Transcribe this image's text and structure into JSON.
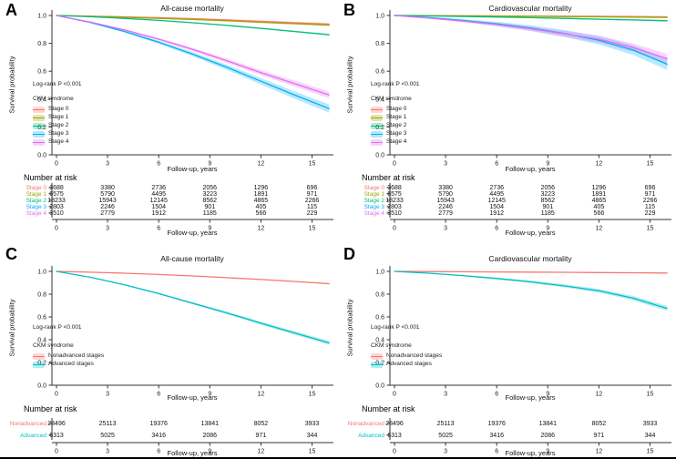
{
  "figure": {
    "background": "#ffffff",
    "bottom_rule_color": "#000000",
    "axis_color": "#333333",
    "xlabel": "Follow-up, years",
    "ylabel": "Survival probability",
    "risk_header": "Number at risk",
    "x_ticks": [
      0,
      3,
      6,
      9,
      12,
      15
    ],
    "y_ticks": [
      "1.0",
      "0.8",
      "0.6",
      "0.4",
      "0.2",
      "0.0"
    ]
  },
  "chart_data": [
    {
      "type": "line",
      "panel_label": "A",
      "title": "All-cause mortality",
      "xlabel": "Follow-up, years",
      "ylabel": "Survival probability",
      "annotation": "Log-rank P <0.001",
      "legend_title": "CKM syndrome",
      "xlim": [
        0,
        16
      ],
      "ylim": [
        0,
        1
      ],
      "x_ticks": [
        0,
        3,
        6,
        9,
        12,
        15
      ],
      "y_ticks": [
        1.0,
        0.8,
        0.6,
        0.4,
        0.2,
        0.0
      ],
      "risk_times": [
        0,
        3,
        6,
        9,
        12,
        15
      ],
      "x": [
        0,
        2,
        4,
        6,
        8,
        10,
        12,
        14,
        16
      ],
      "series": [
        {
          "name": "Stage 0",
          "risk_label": "Stage 0",
          "color": "#F8766D",
          "band_end": 0.008,
          "values": [
            1.0,
            0.995,
            0.99,
            0.984,
            0.977,
            0.968,
            0.958,
            0.948,
            0.938
          ],
          "number_at_risk": [
            3688,
            3380,
            2736,
            2056,
            1296,
            696
          ]
        },
        {
          "name": "Stage 1",
          "risk_label": "Stage 1",
          "color": "#A3A500",
          "band_end": 0.007,
          "values": [
            1.0,
            0.994,
            0.987,
            0.979,
            0.971,
            0.962,
            0.951,
            0.941,
            0.931
          ],
          "number_at_risk": [
            6575,
            5790,
            4495,
            3223,
            1891,
            971
          ]
        },
        {
          "name": "Stage 2",
          "risk_label": "Stage 2",
          "color": "#00BF7D",
          "band_end": 0.007,
          "values": [
            1.0,
            0.991,
            0.979,
            0.965,
            0.948,
            0.929,
            0.908,
            0.885,
            0.862
          ],
          "number_at_risk": [
            18233,
            15943,
            12145,
            8562,
            4865,
            2266
          ]
        },
        {
          "name": "Stage 3",
          "risk_label": "Stage 3",
          "color": "#00B0F6",
          "band_end": 0.03,
          "values": [
            1.0,
            0.95,
            0.885,
            0.808,
            0.722,
            0.628,
            0.528,
            0.428,
            0.332
          ],
          "number_at_risk": [
            2803,
            2246,
            1504,
            901,
            405,
            115
          ]
        },
        {
          "name": "Stage 4",
          "risk_label": "Stage 4",
          "color": "#E76BF3",
          "band_end": 0.024,
          "values": [
            1.0,
            0.952,
            0.896,
            0.83,
            0.756,
            0.675,
            0.59,
            0.51,
            0.43
          ],
          "number_at_risk": [
            3510,
            2779,
            1912,
            1185,
            566,
            229
          ]
        }
      ]
    },
    {
      "type": "line",
      "panel_label": "B",
      "title": "Cardiovascular mortality",
      "xlabel": "Follow-up, years",
      "ylabel": "Survival probability",
      "annotation": "Log-rank P <0.001",
      "legend_title": "CKM syndrome",
      "xlim": [
        0,
        16
      ],
      "ylim": [
        0,
        1
      ],
      "x_ticks": [
        0,
        3,
        6,
        9,
        12,
        15
      ],
      "y_ticks": [
        1.0,
        0.8,
        0.6,
        0.4,
        0.2,
        0.0
      ],
      "risk_times": [
        0,
        3,
        6,
        9,
        12,
        15
      ],
      "x": [
        0,
        2,
        4,
        6,
        8,
        10,
        12,
        14,
        16
      ],
      "series": [
        {
          "name": "Stage 0",
          "risk_label": "Stage 0",
          "color": "#F8766D",
          "band_end": 0.004,
          "values": [
            1.0,
            0.999,
            0.998,
            0.997,
            0.996,
            0.995,
            0.994,
            0.992,
            0.99
          ],
          "number_at_risk": [
            3688,
            3380,
            2736,
            2056,
            1296,
            696
          ]
        },
        {
          "name": "Stage 1",
          "risk_label": "Stage 1",
          "color": "#A3A500",
          "band_end": 0.004,
          "values": [
            1.0,
            0.9985,
            0.997,
            0.9955,
            0.994,
            0.992,
            0.99,
            0.988,
            0.986
          ],
          "number_at_risk": [
            6575,
            5790,
            4495,
            3223,
            1891,
            971
          ]
        },
        {
          "name": "Stage 2",
          "risk_label": "Stage 2",
          "color": "#00BF7D",
          "band_end": 0.006,
          "values": [
            1.0,
            0.997,
            0.993,
            0.989,
            0.984,
            0.979,
            0.973,
            0.968,
            0.962
          ],
          "number_at_risk": [
            18233,
            15943,
            12145,
            8562,
            4865,
            2266
          ]
        },
        {
          "name": "Stage 3",
          "risk_label": "Stage 3",
          "color": "#00B0F6",
          "band_end": 0.04,
          "values": [
            1.0,
            0.985,
            0.965,
            0.94,
            0.91,
            0.87,
            0.822,
            0.752,
            0.65
          ],
          "number_at_risk": [
            2803,
            2246,
            1504,
            901,
            405,
            115
          ]
        },
        {
          "name": "Stage 4",
          "risk_label": "Stage 4",
          "color": "#E76BF3",
          "band_end": 0.034,
          "values": [
            1.0,
            0.982,
            0.96,
            0.935,
            0.905,
            0.868,
            0.83,
            0.77,
            0.69
          ],
          "number_at_risk": [
            3510,
            2779,
            1912,
            1185,
            566,
            229
          ]
        }
      ]
    },
    {
      "type": "line",
      "panel_label": "C",
      "title": "All-cause mortality",
      "xlabel": "Follow-up, years",
      "ylabel": "Survival probability",
      "annotation": "Log-rank P <0.001",
      "legend_title": "CKM syndrome",
      "xlim": [
        0,
        16
      ],
      "ylim": [
        0,
        1
      ],
      "x_ticks": [
        0,
        3,
        6,
        9,
        12,
        15
      ],
      "y_ticks": [
        1.0,
        0.8,
        0.6,
        0.4,
        0.2,
        0.0
      ],
      "risk_times": [
        0,
        3,
        6,
        9,
        12,
        15
      ],
      "x": [
        0,
        2,
        4,
        6,
        8,
        10,
        12,
        14,
        16
      ],
      "series": [
        {
          "name": "Nonadvanced stages",
          "risk_label": "Nonadvanced",
          "color": "#F8766D",
          "band_end": 0.005,
          "values": [
            1.0,
            0.993,
            0.984,
            0.973,
            0.96,
            0.945,
            0.929,
            0.911,
            0.892
          ],
          "number_at_risk": [
            28496,
            25113,
            19376,
            13841,
            8052,
            3933
          ]
        },
        {
          "name": "Advanced stages",
          "risk_label": "Advanced",
          "color": "#00BFC4",
          "band_end": 0.018,
          "values": [
            1.0,
            0.948,
            0.882,
            0.805,
            0.72,
            0.635,
            0.545,
            0.458,
            0.372
          ],
          "number_at_risk": [
            6313,
            5025,
            3416,
            2086,
            971,
            344
          ]
        }
      ]
    },
    {
      "type": "line",
      "panel_label": "D",
      "title": "Cardiovascular mortality",
      "xlabel": "Follow-up, years",
      "ylabel": "Survival probability",
      "annotation": "Log-rank P <0.001",
      "legend_title": "CKM syndrome",
      "xlim": [
        0,
        16
      ],
      "ylim": [
        0,
        1
      ],
      "x_ticks": [
        0,
        3,
        6,
        9,
        12,
        15
      ],
      "y_ticks": [
        1.0,
        0.8,
        0.6,
        0.4,
        0.2,
        0.0
      ],
      "risk_times": [
        0,
        3,
        6,
        9,
        12,
        15
      ],
      "x": [
        0,
        2,
        4,
        6,
        8,
        10,
        12,
        14,
        16
      ],
      "series": [
        {
          "name": "Nonadvanced stages",
          "risk_label": "Nonadvanced",
          "color": "#F8766D",
          "band_end": 0.004,
          "values": [
            1.0,
            0.9985,
            0.997,
            0.9955,
            0.994,
            0.992,
            0.99,
            0.988,
            0.986
          ],
          "number_at_risk": [
            28496,
            25113,
            19376,
            13841,
            8052,
            3933
          ]
        },
        {
          "name": "Advanced stages",
          "risk_label": "Advanced",
          "color": "#00BFC4",
          "band_end": 0.022,
          "values": [
            1.0,
            0.984,
            0.963,
            0.938,
            0.908,
            0.872,
            0.83,
            0.765,
            0.675
          ],
          "number_at_risk": [
            6313,
            5025,
            3416,
            2086,
            971,
            344
          ]
        }
      ]
    }
  ]
}
